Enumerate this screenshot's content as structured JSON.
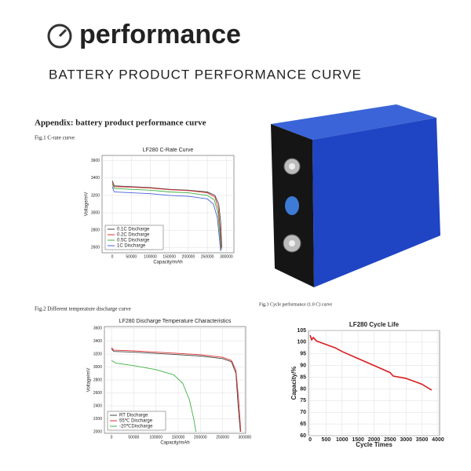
{
  "header": {
    "title": "performance",
    "subtitle": "BATTERY PRODUCT PERFORMANCE CURVE",
    "appendix": "Appendix: battery product performance curve",
    "fig1_caption": "Fig.1 C-rate curve",
    "fig2_caption": "Fig.2 Different temperature discharge curve",
    "fig3_caption": "Fig.3 Cycle performance (1.0 C) curve"
  },
  "chart_data": [
    {
      "type": "line",
      "title": "LF280 C-Rate Curve",
      "x_label": "Capacity/mAh",
      "y_label": "Voltage/mV",
      "xlim": [
        -27000,
        320000
      ],
      "xticks": [
        0,
        50000,
        100000,
        150000,
        200000,
        250000,
        300000
      ],
      "ylim": [
        2540,
        3660
      ],
      "yticks": [
        2600,
        2800,
        3000,
        3200,
        3400,
        3600
      ],
      "grid": true,
      "legend": "lower left",
      "series": [
        {
          "name": "0.1C Discharge",
          "color": "#444444",
          "x": [
            0,
            5000,
            50000,
            100000,
            150000,
            200000,
            250000,
            270000,
            280000,
            285000,
            288000
          ],
          "values": [
            3370,
            3310,
            3300,
            3290,
            3270,
            3260,
            3240,
            3200,
            3100,
            2900,
            2600
          ]
        },
        {
          "name": "0.2C Discharge",
          "color": "#e03030",
          "x": [
            0,
            5000,
            50000,
            100000,
            150000,
            200000,
            250000,
            270000,
            279000,
            284000,
            287000
          ],
          "values": [
            3350,
            3300,
            3295,
            3285,
            3265,
            3255,
            3230,
            3180,
            3050,
            2800,
            2580
          ]
        },
        {
          "name": "0.5C Discharge",
          "color": "#3cb043",
          "x": [
            0,
            5000,
            50000,
            100000,
            150000,
            200000,
            250000,
            268000,
            278000,
            283000,
            286000
          ],
          "values": [
            3330,
            3280,
            3270,
            3260,
            3240,
            3230,
            3200,
            3150,
            3000,
            2750,
            2570
          ]
        },
        {
          "name": "1C Discharge",
          "color": "#4a5fd8",
          "x": [
            0,
            5000,
            50000,
            100000,
            150000,
            200000,
            250000,
            266000,
            276000,
            282000,
            285000
          ],
          "values": [
            3300,
            3240,
            3230,
            3220,
            3200,
            3190,
            3160,
            3100,
            2950,
            2700,
            2560
          ]
        }
      ]
    },
    {
      "type": "line",
      "title": "LF280 Discharge Temperature Characteristics",
      "x_label": "Capacity/mAh",
      "y_label": "Voltage/mV",
      "xlim": [
        -16000,
        302000
      ],
      "xticks": [
        0,
        50000,
        100000,
        150000,
        200000,
        250000,
        300000
      ],
      "ylim": [
        1975,
        3625
      ],
      "yticks": [
        2000,
        2200,
        2400,
        2600,
        2800,
        3000,
        3200,
        3400,
        3600
      ],
      "grid": true,
      "legend": "lower left",
      "series": [
        {
          "name": "RT  Discharge",
          "color": "#444444",
          "x": [
            0,
            5000,
            50000,
            100000,
            150000,
            200000,
            250000,
            270000,
            280000,
            285000,
            290000
          ],
          "values": [
            3280,
            3240,
            3230,
            3210,
            3190,
            3170,
            3130,
            3080,
            2900,
            2400,
            2000
          ]
        },
        {
          "name": "55℃ Discharge",
          "color": "#e03030",
          "x": [
            0,
            5000,
            50000,
            100000,
            150000,
            200000,
            250000,
            270000,
            280000,
            286000,
            291000
          ],
          "values": [
            3300,
            3260,
            3250,
            3230,
            3210,
            3190,
            3150,
            3100,
            2950,
            2500,
            2000
          ]
        },
        {
          "name": "-20℃Discharge",
          "color": "#3cb043",
          "x": [
            0,
            10000,
            50000,
            100000,
            140000,
            160000,
            175000,
            185000,
            190000
          ],
          "values": [
            3100,
            3060,
            3020,
            2960,
            2880,
            2750,
            2500,
            2200,
            2000
          ]
        }
      ]
    },
    {
      "type": "line",
      "title": "LF280 Cycle Life",
      "x_label": "Cycle Times",
      "y_label": "Capacity/%",
      "xlim": [
        -50,
        4050
      ],
      "xticks": [
        0,
        500,
        1000,
        1500,
        2000,
        2500,
        3000,
        3500,
        4000
      ],
      "ylim": [
        60,
        105
      ],
      "yticks": [
        60,
        65,
        70,
        75,
        80,
        85,
        90,
        95,
        100,
        105
      ],
      "grid": true,
      "series": [
        {
          "color": "#d81e1e",
          "x": [
            0,
            50,
            100,
            200,
            300,
            500,
            800,
            1000,
            1500,
            2000,
            2500,
            2600,
            3000,
            3500,
            3800
          ],
          "values": [
            103,
            101,
            102,
            100.5,
            100,
            99,
            97.5,
            96,
            93,
            90,
            87,
            85.5,
            84.5,
            82,
            79.5
          ]
        }
      ]
    }
  ]
}
